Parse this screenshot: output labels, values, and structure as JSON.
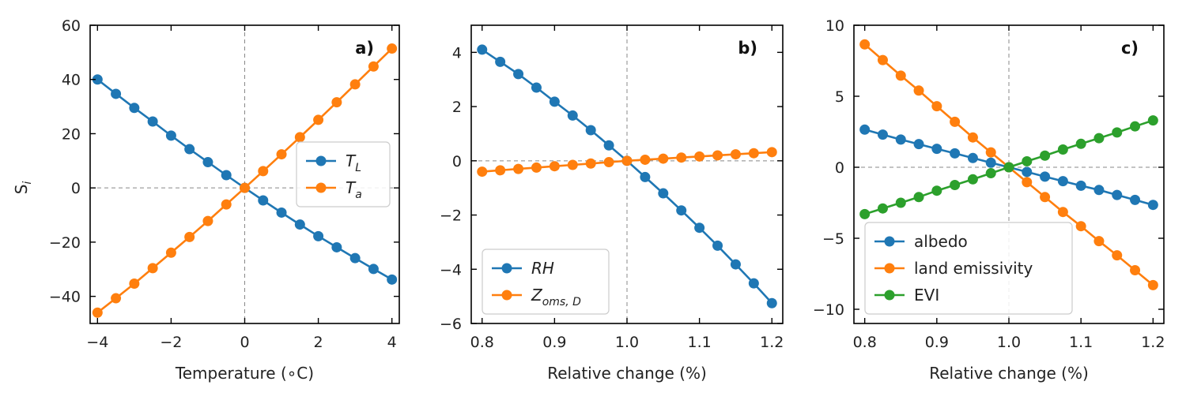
{
  "figure": {
    "ylabel": "S",
    "ylabel_sub": "i"
  },
  "chart_data": [
    {
      "type": "line",
      "panel_label": "a)",
      "xlabel": "Temperature (∘C)",
      "xlim": [
        -4.2,
        4.2
      ],
      "ylim": [
        -50,
        60
      ],
      "xticks": [
        -4,
        -2,
        0,
        2,
        4
      ],
      "xtick_labels": [
        "−4",
        "−2",
        "0",
        "2",
        "4"
      ],
      "yticks": [
        -40,
        -20,
        0,
        20,
        40,
        60
      ],
      "ytick_labels": [
        "−40",
        "−20",
        "0",
        "20",
        "40",
        "60"
      ],
      "ref_x": 0,
      "ref_y": 0,
      "legend_position": "center-right",
      "x": [
        -4,
        -3.5,
        -3,
        -2.5,
        -2,
        -1.5,
        -1,
        -0.5,
        0,
        0.5,
        1,
        1.5,
        2,
        2.5,
        3,
        3.5,
        4
      ],
      "series": [
        {
          "name": "T",
          "name_sub": "L",
          "italic": true,
          "color": "#1f77b4",
          "values": [
            40,
            34.7,
            29.5,
            24.5,
            19.3,
            14.3,
            9.5,
            4.7,
            0,
            -4.6,
            -9.1,
            -13.5,
            -17.8,
            -21.9,
            -25.9,
            -29.9,
            -33.8
          ]
        },
        {
          "name": "T",
          "name_sub": "a",
          "italic": true,
          "color": "#ff7f0e",
          "values": [
            -46,
            -40.7,
            -35.3,
            -29.6,
            -23.9,
            -18.1,
            -12.2,
            -6.1,
            0,
            6.2,
            12.4,
            18.7,
            25.1,
            31.6,
            38.2,
            44.8,
            51.4
          ]
        }
      ]
    },
    {
      "type": "line",
      "panel_label": "b)",
      "xlabel": "Relative change (%)",
      "xlim": [
        0.785,
        1.215
      ],
      "ylim": [
        -6,
        5
      ],
      "xticks": [
        0.8,
        0.9,
        1.0,
        1.1,
        1.2
      ],
      "xtick_labels": [
        "0.8",
        "0.9",
        "1.0",
        "1.1",
        "1.2"
      ],
      "yticks": [
        -6,
        -4,
        -2,
        0,
        2,
        4
      ],
      "ytick_labels": [
        "−6",
        "−4",
        "−2",
        "0",
        "2",
        "4"
      ],
      "ref_x": 1.0,
      "ref_y": 0,
      "legend_position": "lower-left",
      "x": [
        0.8,
        0.825,
        0.85,
        0.875,
        0.9,
        0.925,
        0.95,
        0.975,
        1.0,
        1.025,
        1.05,
        1.075,
        1.1,
        1.125,
        1.15,
        1.175,
        1.2
      ],
      "series": [
        {
          "name": "RH",
          "name_sub": "",
          "italic": true,
          "color": "#1f77b4",
          "values": [
            4.1,
            3.65,
            3.2,
            2.7,
            2.18,
            1.67,
            1.13,
            0.57,
            0,
            -0.6,
            -1.2,
            -1.83,
            -2.47,
            -3.13,
            -3.82,
            -4.52,
            -5.25
          ]
        },
        {
          "name": "Z",
          "name_sub": "oms, D",
          "italic": true,
          "color": "#ff7f0e",
          "values": [
            -0.4,
            -0.35,
            -0.3,
            -0.25,
            -0.2,
            -0.15,
            -0.1,
            -0.05,
            0,
            0.04,
            0.08,
            0.12,
            0.16,
            0.2,
            0.24,
            0.28,
            0.32
          ]
        }
      ]
    },
    {
      "type": "line",
      "panel_label": "c)",
      "xlabel": "Relative change (%)",
      "xlim": [
        0.785,
        1.215
      ],
      "ylim": [
        -11,
        10
      ],
      "xticks": [
        0.8,
        0.9,
        1.0,
        1.1,
        1.2
      ],
      "xtick_labels": [
        "0.8",
        "0.9",
        "1.0",
        "1.1",
        "1.2"
      ],
      "yticks": [
        -10,
        -5,
        0,
        5,
        10
      ],
      "ytick_labels": [
        "−10",
        "−5",
        "0",
        "5",
        "10"
      ],
      "ref_x": 1.0,
      "ref_y": 0,
      "legend_position": "lower-left",
      "x": [
        0.8,
        0.825,
        0.85,
        0.875,
        0.9,
        0.925,
        0.95,
        0.975,
        1.0,
        1.025,
        1.05,
        1.075,
        1.1,
        1.125,
        1.15,
        1.175,
        1.2
      ],
      "series": [
        {
          "name": "albedo",
          "name_sub": "",
          "italic": false,
          "color": "#1f77b4",
          "values": [
            2.65,
            2.3,
            1.95,
            1.63,
            1.3,
            0.98,
            0.65,
            0.32,
            0,
            -0.33,
            -0.66,
            -0.98,
            -1.3,
            -1.6,
            -1.95,
            -2.3,
            -2.65
          ]
        },
        {
          "name": "land emissivity",
          "name_sub": "",
          "italic": false,
          "color": "#ff7f0e",
          "values": [
            8.65,
            7.55,
            6.45,
            5.4,
            4.3,
            3.2,
            2.1,
            1.05,
            0,
            -1.05,
            -2.1,
            -3.15,
            -4.15,
            -5.2,
            -6.2,
            -7.25,
            -8.3
          ]
        },
        {
          "name": "EVI",
          "name_sub": "",
          "italic": false,
          "color": "#2ca02c",
          "values": [
            -3.3,
            -2.9,
            -2.5,
            -2.1,
            -1.65,
            -1.25,
            -0.85,
            -0.42,
            0,
            0.42,
            0.82,
            1.25,
            1.65,
            2.05,
            2.45,
            2.88,
            3.3
          ]
        }
      ]
    }
  ]
}
